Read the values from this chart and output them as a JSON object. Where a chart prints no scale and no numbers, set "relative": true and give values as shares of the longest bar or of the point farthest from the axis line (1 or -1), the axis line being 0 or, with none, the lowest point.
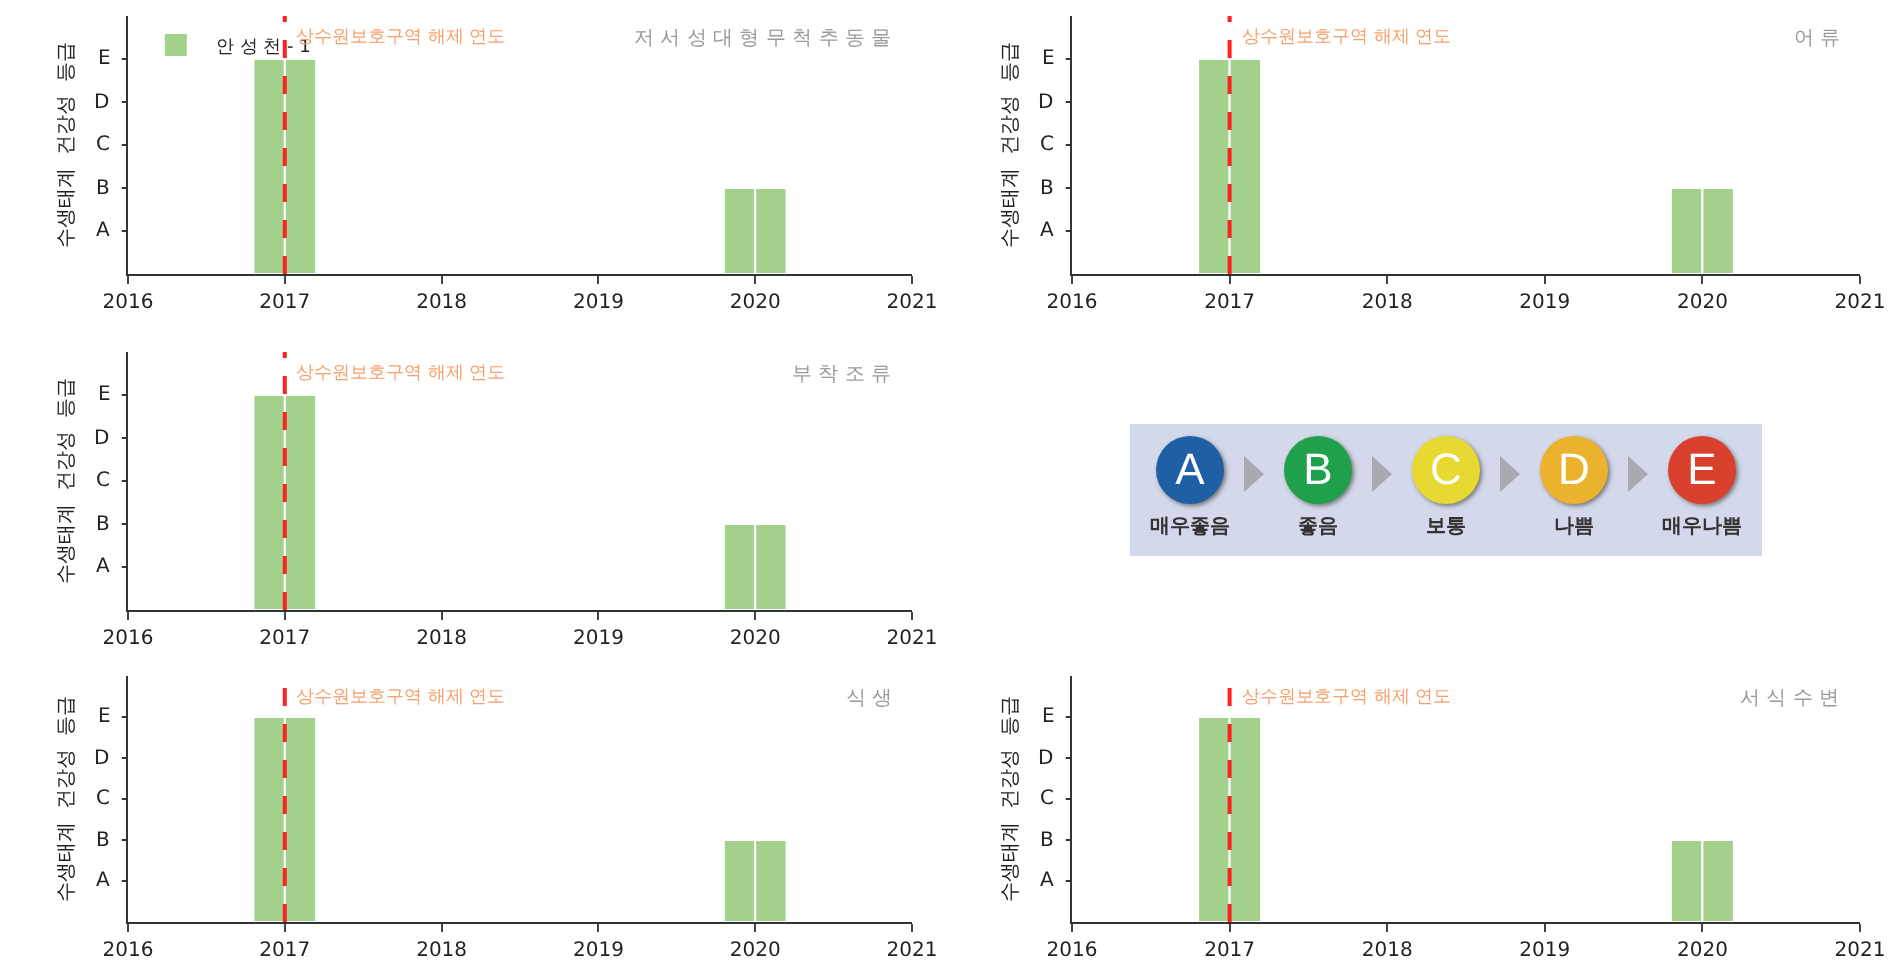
{
  "chart_data": [
    {
      "type": "bar",
      "relative": true,
      "title": "저 서 성 대 형 무 척 추 동 물",
      "ylabel": "수생태계  건강성  등급",
      "x": [
        2016.9,
        2017.1,
        2019.9,
        2020.1
      ],
      "series": [
        {
          "name": "안 성 천 - 1",
          "color": "#a3d18c",
          "values": [
            1,
            1,
            0.4,
            0.4
          ]
        }
      ],
      "xlim": [
        2016,
        2021
      ],
      "xticks": [
        2016,
        2017,
        2018,
        2019,
        2020,
        2021
      ],
      "annotations": [
        "A",
        "B",
        "C",
        "D",
        "E"
      ],
      "ref_lines": [
        {
          "axis": "x",
          "value": 2017,
          "label": "상수원보호구역 해제 연도",
          "color": "#ff2020",
          "line_style": "dashed"
        }
      ],
      "legend": "top left"
    },
    {
      "type": "bar",
      "relative": true,
      "title": "어 류",
      "ylabel": "수생태계  건강성  등급",
      "x": [
        2016.9,
        2017.1,
        2019.9,
        2020.1
      ],
      "series": [
        {
          "color": "#a3d18c",
          "values": [
            1,
            1,
            0.4,
            0.4
          ]
        }
      ],
      "xlim": [
        2016,
        2021
      ],
      "xticks": [
        2016,
        2017,
        2018,
        2019,
        2020,
        2021
      ],
      "annotations": [
        "A",
        "B",
        "C",
        "D",
        "E"
      ],
      "ref_lines": [
        {
          "axis": "x",
          "value": 2017,
          "label": "상수원보호구역 해제 연도",
          "color": "#ff2020",
          "line_style": "dashed"
        }
      ]
    },
    {
      "type": "bar",
      "relative": true,
      "title": "부 착 조 류",
      "ylabel": "수생태계  건강성  등급",
      "x": [
        2016.9,
        2017.1,
        2019.9,
        2020.1
      ],
      "series": [
        {
          "color": "#a3d18c",
          "values": [
            1,
            1,
            0.4,
            0.4
          ]
        }
      ],
      "xlim": [
        2016,
        2021
      ],
      "xticks": [
        2016,
        2017,
        2018,
        2019,
        2020,
        2021
      ],
      "annotations": [
        "A",
        "B",
        "C",
        "D",
        "E"
      ],
      "ref_lines": [
        {
          "axis": "x",
          "value": 2017,
          "label": "상수원보호구역 해제 연도",
          "color": "#ff2020",
          "line_style": "dashed"
        }
      ]
    },
    {
      "type": "other",
      "categories": [
        "A",
        "B",
        "C",
        "D",
        "E"
      ],
      "colors": [
        "#1f5fa6",
        "#1fa04a",
        "#e8d832",
        "#ebb22e",
        "#d9402e"
      ],
      "annotations": [
        "매우좋음",
        "좋음",
        "보통",
        "나쁨",
        "매우나쁨"
      ]
    },
    {
      "type": "bar",
      "relative": true,
      "title": "식 생",
      "ylabel": "수생태계  건강성  등급",
      "x": [
        2016.9,
        2017.1,
        2019.9,
        2020.1
      ],
      "series": [
        {
          "color": "#a3d18c",
          "values": [
            1,
            1,
            0.4,
            0.4
          ]
        }
      ],
      "xlim": [
        2016,
        2021
      ],
      "xticks": [
        2016,
        2017,
        2018,
        2019,
        2020,
        2021
      ],
      "annotations": [
        "A",
        "B",
        "C",
        "D",
        "E"
      ],
      "ref_lines": [
        {
          "axis": "x",
          "value": 2017,
          "label": "상수원보호구역 해제 연도",
          "color": "#ff2020",
          "line_style": "dashed"
        }
      ]
    },
    {
      "type": "bar",
      "relative": true,
      "title": "서 식 수 변",
      "ylabel": "수생태계  건강성  등급",
      "x": [
        2016.9,
        2017.1,
        2019.9,
        2020.1
      ],
      "series": [
        {
          "color": "#a3d18c",
          "values": [
            1,
            1,
            0.4,
            0.4
          ]
        }
      ],
      "xlim": [
        2016,
        2021
      ],
      "xticks": [
        2016,
        2017,
        2018,
        2019,
        2020,
        2021
      ],
      "annotations": [
        "A",
        "B",
        "C",
        "D",
        "E"
      ],
      "ref_lines": [
        {
          "axis": "x",
          "value": 2017,
          "label": "상수원보호구역 해제 연도",
          "color": "#ff2020",
          "line_style": "dashed"
        }
      ]
    }
  ]
}
